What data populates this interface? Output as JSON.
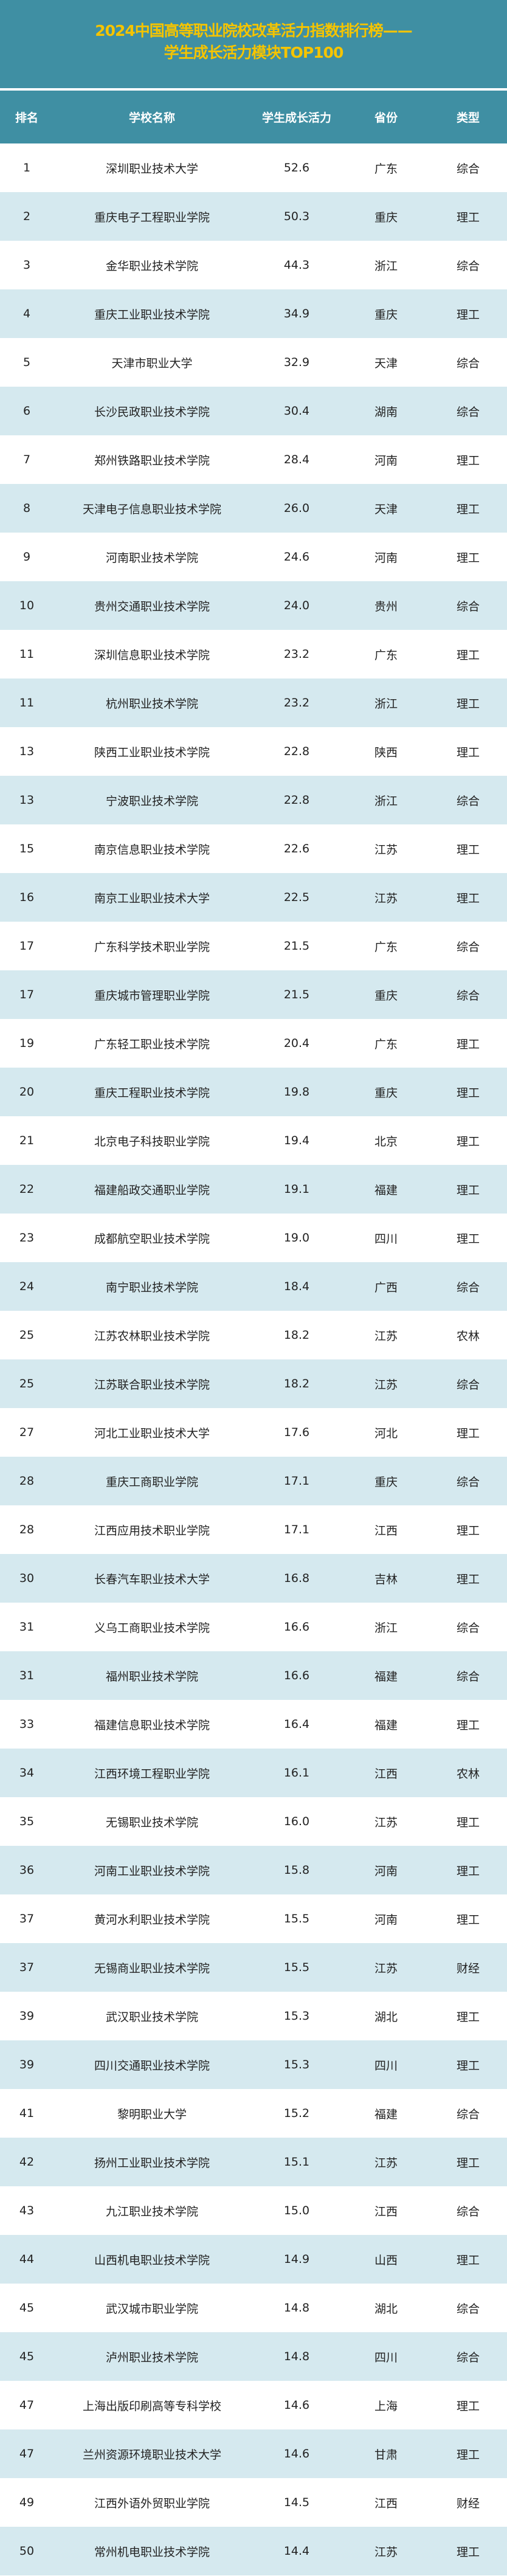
{
  "title": {
    "line1": "2024中国高等职业院校改革活力指数排行榜——",
    "line2": "学生成长活力模块TOP100"
  },
  "colors": {
    "title_bg": "#3f8fa3",
    "title_text": "#f5c400",
    "alt_row": "#d5e9ef"
  },
  "columns": [
    "排名",
    "学校名称",
    "学生成长活力",
    "省份",
    "类型"
  ],
  "rows": [
    [
      "1",
      "深圳职业技术大学",
      "52.6",
      "广东",
      "综合"
    ],
    [
      "2",
      "重庆电子工程职业学院",
      "50.3",
      "重庆",
      "理工"
    ],
    [
      "3",
      "金华职业技术学院",
      "44.3",
      "浙江",
      "综合"
    ],
    [
      "4",
      "重庆工业职业技术学院",
      "34.9",
      "重庆",
      "理工"
    ],
    [
      "5",
      "天津市职业大学",
      "32.9",
      "天津",
      "综合"
    ],
    [
      "6",
      "长沙民政职业技术学院",
      "30.4",
      "湖南",
      "综合"
    ],
    [
      "7",
      "郑州铁路职业技术学院",
      "28.4",
      "河南",
      "理工"
    ],
    [
      "8",
      "天津电子信息职业技术学院",
      "26.0",
      "天津",
      "理工"
    ],
    [
      "9",
      "河南职业技术学院",
      "24.6",
      "河南",
      "理工"
    ],
    [
      "10",
      "贵州交通职业技术学院",
      "24.0",
      "贵州",
      "综合"
    ],
    [
      "11",
      "深圳信息职业技术学院",
      "23.2",
      "广东",
      "理工"
    ],
    [
      "11",
      "杭州职业技术学院",
      "23.2",
      "浙江",
      "理工"
    ],
    [
      "13",
      "陕西工业职业技术学院",
      "22.8",
      "陕西",
      "理工"
    ],
    [
      "13",
      "宁波职业技术学院",
      "22.8",
      "浙江",
      "综合"
    ],
    [
      "15",
      "南京信息职业技术学院",
      "22.6",
      "江苏",
      "理工"
    ],
    [
      "16",
      "南京工业职业技术大学",
      "22.5",
      "江苏",
      "理工"
    ],
    [
      "17",
      "广东科学技术职业学院",
      "21.5",
      "广东",
      "综合"
    ],
    [
      "17",
      "重庆城市管理职业学院",
      "21.5",
      "重庆",
      "综合"
    ],
    [
      "19",
      "广东轻工职业技术学院",
      "20.4",
      "广东",
      "理工"
    ],
    [
      "20",
      "重庆工程职业技术学院",
      "19.8",
      "重庆",
      "理工"
    ],
    [
      "21",
      "北京电子科技职业学院",
      "19.4",
      "北京",
      "理工"
    ],
    [
      "22",
      "福建船政交通职业学院",
      "19.1",
      "福建",
      "理工"
    ],
    [
      "23",
      "成都航空职业技术学院",
      "19.0",
      "四川",
      "理工"
    ],
    [
      "24",
      "南宁职业技术学院",
      "18.4",
      "广西",
      "综合"
    ],
    [
      "25",
      "江苏农林职业技术学院",
      "18.2",
      "江苏",
      "农林"
    ],
    [
      "25",
      "江苏联合职业技术学院",
      "18.2",
      "江苏",
      "综合"
    ],
    [
      "27",
      "河北工业职业技术大学",
      "17.6",
      "河北",
      "理工"
    ],
    [
      "28",
      "重庆工商职业学院",
      "17.1",
      "重庆",
      "综合"
    ],
    [
      "28",
      "江西应用技术职业学院",
      "17.1",
      "江西",
      "理工"
    ],
    [
      "30",
      "长春汽车职业技术大学",
      "16.8",
      "吉林",
      "理工"
    ],
    [
      "31",
      "义乌工商职业技术学院",
      "16.6",
      "浙江",
      "综合"
    ],
    [
      "31",
      "福州职业技术学院",
      "16.6",
      "福建",
      "综合"
    ],
    [
      "33",
      "福建信息职业技术学院",
      "16.4",
      "福建",
      "理工"
    ],
    [
      "34",
      "江西环境工程职业学院",
      "16.1",
      "江西",
      "农林"
    ],
    [
      "35",
      "无锡职业技术学院",
      "16.0",
      "江苏",
      "理工"
    ],
    [
      "36",
      "河南工业职业技术学院",
      "15.8",
      "河南",
      "理工"
    ],
    [
      "37",
      "黄河水利职业技术学院",
      "15.5",
      "河南",
      "理工"
    ],
    [
      "37",
      "无锡商业职业技术学院",
      "15.5",
      "江苏",
      "财经"
    ],
    [
      "39",
      "武汉职业技术学院",
      "15.3",
      "湖北",
      "理工"
    ],
    [
      "39",
      "四川交通职业技术学院",
      "15.3",
      "四川",
      "理工"
    ],
    [
      "41",
      "黎明职业大学",
      "15.2",
      "福建",
      "综合"
    ],
    [
      "42",
      "扬州工业职业技术学院",
      "15.1",
      "江苏",
      "理工"
    ],
    [
      "43",
      "九江职业技术学院",
      "15.0",
      "江西",
      "综合"
    ],
    [
      "44",
      "山西机电职业技术学院",
      "14.9",
      "山西",
      "理工"
    ],
    [
      "45",
      "武汉城市职业学院",
      "14.8",
      "湖北",
      "综合"
    ],
    [
      "45",
      "泸州职业技术学院",
      "14.8",
      "四川",
      "综合"
    ],
    [
      "47",
      "上海出版印刷高等专科学校",
      "14.6",
      "上海",
      "理工"
    ],
    [
      "47",
      "兰州资源环境职业技术大学",
      "14.6",
      "甘肃",
      "理工"
    ],
    [
      "49",
      "江西外语外贸职业学院",
      "14.5",
      "江西",
      "财经"
    ],
    [
      "50",
      "常州机电职业技术学院",
      "14.4",
      "江苏",
      "理工"
    ]
  ]
}
